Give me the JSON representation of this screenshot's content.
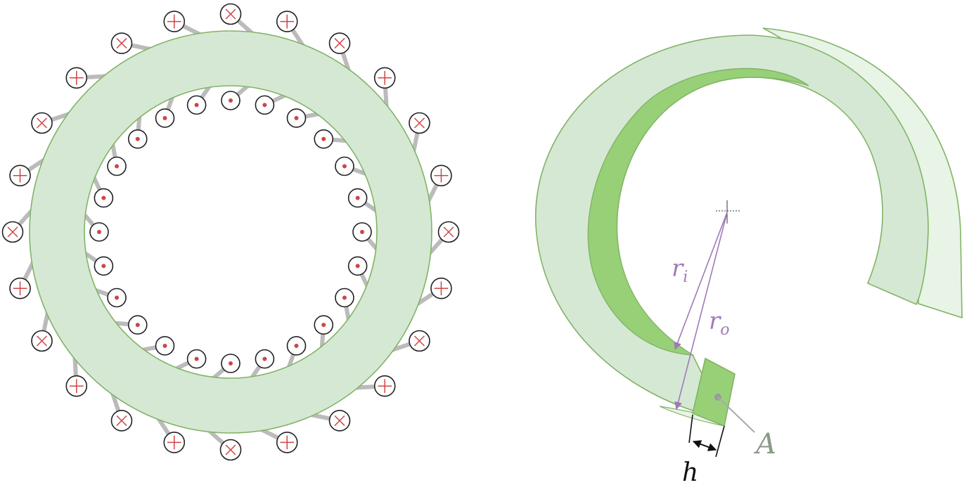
{
  "colors": {
    "core_fill": "#d5e8d4",
    "core_stroke": "#82b366",
    "core_dark": "#97d077",
    "core_light": "#e8f4e6",
    "wire": "#222222",
    "current_mark": "#d04545",
    "leg": "#bbbbbb",
    "dimension": "#a07ab8",
    "label_gray": "#8a9a88",
    "pointer_gray": "#aaaaaa",
    "text_dark": "#111111"
  },
  "left_figure": {
    "outer_winding": {
      "count": 24,
      "direction": "into-page"
    },
    "inner_winding": {
      "count": 24,
      "direction": "out-of-page"
    }
  },
  "right_figure": {
    "labels": {
      "inner_radius": "r",
      "inner_radius_sub": "i",
      "outer_radius": "r",
      "outer_radius_sub": "o",
      "cross_section": "A",
      "thickness": "h"
    }
  }
}
